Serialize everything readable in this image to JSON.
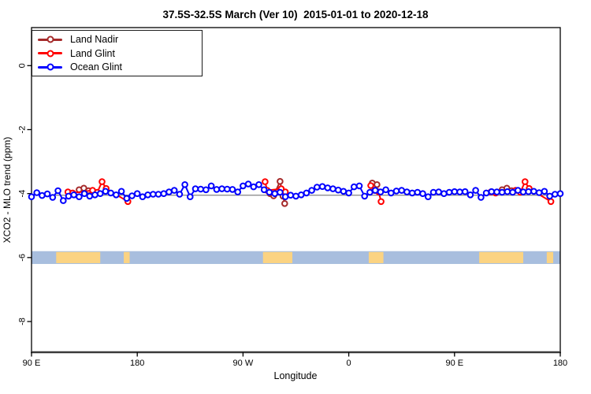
{
  "chart_data": {
    "type": "scatter",
    "title": "37.5S-32.5S March (Ver 10)  2015-01-01 to 2020-12-18",
    "xlabel": "Longitude",
    "ylabel": "XCO2 - MLO trend (ppm)",
    "xlim": [
      90,
      540
    ],
    "ylim": [
      -8.96,
      1.19
    ],
    "grid": false,
    "legend_position": "top-left",
    "x_ticks": [
      {
        "v": 90,
        "label": "90 E"
      },
      {
        "v": 180,
        "label": "180"
      },
      {
        "v": 270,
        "label": "90 W"
      },
      {
        "v": 360,
        "label": "0"
      },
      {
        "v": 450,
        "label": "90 E"
      },
      {
        "v": 540,
        "label": "180"
      }
    ],
    "y_ticks": [
      {
        "v": 0,
        "label": "0"
      },
      {
        "v": -2,
        "label": "-2"
      },
      {
        "v": -4,
        "label": "-4"
      },
      {
        "v": -6,
        "label": "-6"
      },
      {
        "v": -8,
        "label": "-8"
      }
    ],
    "reference_line": {
      "y": -4.05,
      "color": "#8f8f8f"
    },
    "map_band": {
      "y_top": -5.8,
      "y_bottom": -6.2,
      "ocean_color": "#A8BEDE",
      "land_color": "#FBD382",
      "land_patches": [
        {
          "region": "australia",
          "from": 111,
          "to": 148.5
        },
        {
          "region": "new-zealand",
          "from": 168.5,
          "to": 173.5
        },
        {
          "region": "south-america",
          "from": 287,
          "to": 312
        },
        {
          "region": "africa",
          "from": 377,
          "to": 389.5
        },
        {
          "region": "australia-repeat",
          "from": 471,
          "to": 508.5
        },
        {
          "region": "new-zealand-repeat",
          "from": 528.5,
          "to": 534
        }
      ]
    },
    "series": [
      {
        "name": "Land Nadir",
        "color": "#A52A2A",
        "segments": [
          [
            [
              130.5,
              -3.88
            ],
            [
              134.5,
              -3.83
            ],
            [
              138.5,
              -3.91
            ]
          ],
          [
            [
              293,
              -4.0
            ],
            [
              296,
              -4.07
            ],
            [
              301.5,
              -3.62
            ],
            [
              304,
              -4.08
            ],
            [
              305.5,
              -4.31
            ]
          ],
          [
            [
              380,
              -3.67
            ],
            [
              384,
              -3.72
            ]
          ],
          [
            [
              490.5,
              -3.88
            ],
            [
              494.5,
              -3.83
            ],
            [
              498.5,
              -3.91
            ]
          ]
        ]
      },
      {
        "name": "Land Glint",
        "color": "#FF0000",
        "segments": [
          [
            [
              121,
              -3.95
            ],
            [
              125,
              -3.98
            ],
            [
              142,
              -3.9
            ],
            [
              146,
              -3.96
            ],
            [
              150,
              -3.63
            ],
            [
              153.5,
              -3.84
            ],
            [
              172,
              -4.25
            ]
          ],
          [
            [
              288.8,
              -3.63
            ],
            [
              290.5,
              -3.9
            ],
            [
              302.5,
              -3.85
            ],
            [
              306,
              -3.95
            ]
          ],
          [
            [
              378.7,
              -3.75
            ],
            [
              382,
              -3.9
            ],
            [
              385.5,
              -3.95
            ],
            [
              387.5,
              -4.25
            ]
          ],
          [
            [
              481,
              -3.95
            ],
            [
              485,
              -3.98
            ],
            [
              502,
              -3.9
            ],
            [
              506,
              -3.96
            ],
            [
              510,
              -3.63
            ],
            [
              513.5,
              -3.84
            ],
            [
              532,
              -4.25
            ]
          ]
        ]
      },
      {
        "name": "Ocean Glint",
        "color": "#0000FF",
        "x_start": 90,
        "x_step": 4.5,
        "values": [
          -4.1,
          -3.97,
          -4.06,
          -4.01,
          -4.12,
          -3.91,
          -4.22,
          -4.08,
          -4.04,
          -4.1,
          -4.0,
          -4.08,
          -4.04,
          -4.0,
          -3.93,
          -3.98,
          -4.04,
          -3.93,
          -4.15,
          -4.07,
          -4.0,
          -4.1,
          -4.04,
          -4.02,
          -4.02,
          -4.0,
          -3.95,
          -3.9,
          -4.02,
          -3.72,
          -4.1,
          -3.85,
          -3.86,
          -3.88,
          -3.76,
          -3.87,
          -3.85,
          -3.86,
          -3.87,
          -3.95,
          -3.76,
          -3.7,
          -3.79,
          -3.72,
          -3.88,
          -3.96,
          -4.0,
          -3.96,
          -4.1,
          -4.05,
          -4.08,
          -4.04,
          -3.98,
          -3.9,
          -3.8,
          -3.78,
          -3.82,
          -3.85,
          -3.89,
          -3.93,
          -3.98,
          -3.79,
          -3.76,
          -4.08,
          -3.96,
          -3.9,
          -3.95,
          -3.88,
          -3.98,
          -3.92,
          -3.9,
          -3.95,
          -3.98,
          -3.96,
          -4.0,
          -4.1,
          -3.96,
          -3.95,
          -4.0,
          -3.96,
          -3.94,
          -3.95,
          -3.94,
          -4.04,
          -3.9,
          -4.12,
          -3.98,
          -3.94,
          -3.95,
          -3.96,
          -3.94,
          -3.96,
          -3.9,
          -3.95,
          -3.94,
          -3.93,
          -3.97,
          -3.93,
          -4.08,
          -4.02,
          -4.0
        ]
      }
    ]
  }
}
